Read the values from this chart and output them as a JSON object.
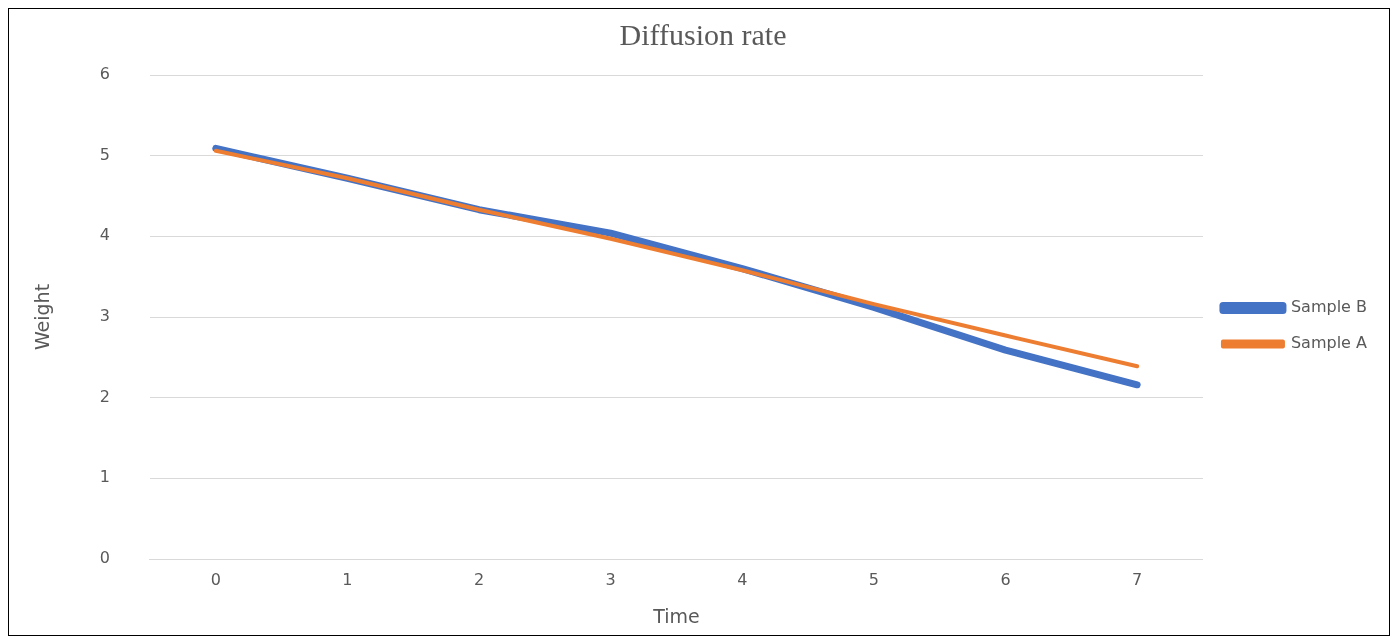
{
  "chart_data": {
    "type": "line",
    "title": "Diffusion rate",
    "xlabel": "Time",
    "ylabel": "Weight",
    "categories": [
      "0",
      "1",
      "2",
      "3",
      "4",
      "5",
      "6",
      "7"
    ],
    "series": [
      {
        "name": "Sample B",
        "color": "#4472c4",
        "values": [
          5.09,
          4.72,
          4.33,
          4.04,
          3.6,
          3.12,
          2.59,
          2.16
        ]
      },
      {
        "name": "Sample A",
        "color": "#ed7d31",
        "values": [
          5.06,
          4.72,
          4.33,
          3.97,
          3.58,
          3.16,
          2.77,
          2.39
        ]
      }
    ],
    "ylim": [
      0,
      6
    ],
    "yticks": [
      0,
      1,
      2,
      3,
      4,
      5,
      6
    ],
    "grid": "y",
    "legend": "right",
    "marker": "none",
    "line_style": "solid"
  }
}
